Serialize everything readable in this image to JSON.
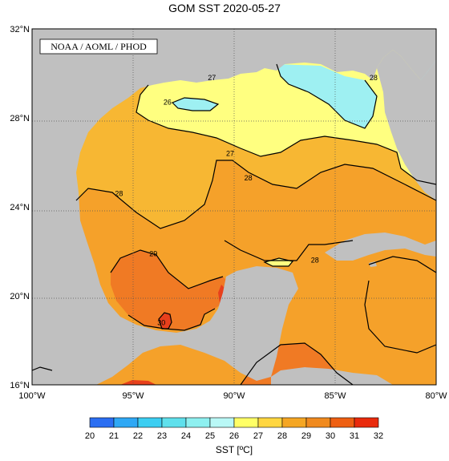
{
  "title": "GOM SST  2020-05-27",
  "credit": "NOAA / AOML / PHOD",
  "lat_labels": [
    {
      "lat": 32,
      "label": "32°N"
    },
    {
      "lat": 28,
      "label": "28°N"
    },
    {
      "lat": 24,
      "label": "24°N"
    },
    {
      "lat": 20,
      "label": "20°N"
    },
    {
      "lat": 16,
      "label": "16°N"
    }
  ],
  "lon_labels": [
    {
      "lon": -100,
      "label": "100°W"
    },
    {
      "lon": -95,
      "label": "95°W"
    },
    {
      "lon": -90,
      "label": "90°W"
    },
    {
      "lon": -85,
      "label": "85°W"
    },
    {
      "lon": -80,
      "label": "80°W"
    }
  ],
  "contour_labels": [
    {
      "text": "26",
      "lon": -93.3,
      "lat": 28.7
    },
    {
      "text": "27",
      "lon": -90.2,
      "lat": 26.4
    },
    {
      "text": "27",
      "lon": -91.1,
      "lat": 29.8
    },
    {
      "text": "28",
      "lon": -95.7,
      "lat": 24.6
    },
    {
      "text": "28",
      "lon": -89.3,
      "lat": 25.3
    },
    {
      "text": "28",
      "lon": -86.0,
      "lat": 21.6
    },
    {
      "text": "29",
      "lon": -94.0,
      "lat": 21.9
    },
    {
      "text": "30",
      "lon": -93.6,
      "lat": 18.8
    },
    {
      "text": "28",
      "lon": -83.1,
      "lat": 29.8
    }
  ],
  "colorbar": {
    "ticks": [
      "20",
      "21",
      "22",
      "23",
      "24",
      "25",
      "26",
      "27",
      "28",
      "29",
      "30",
      "31",
      "32"
    ],
    "colors": [
      "#2b6ef2",
      "#2fa8f5",
      "#3ccef2",
      "#5fe0ec",
      "#8ef0f0",
      "#b9f8f6",
      "#ffff66",
      "#ffd640",
      "#f5a623",
      "#f08a1e",
      "#ee5f12",
      "#e92a0c"
    ],
    "units": "SST [ºC]"
  },
  "colors": {
    "land": "#c0c0c0",
    "sst26": "#9ef0f2",
    "sst27": "#ffff80",
    "sst28": "#f7b733",
    "sst29": "#f5a12a",
    "sst30": "#f07a24",
    "sst31": "#e8401c"
  }
}
